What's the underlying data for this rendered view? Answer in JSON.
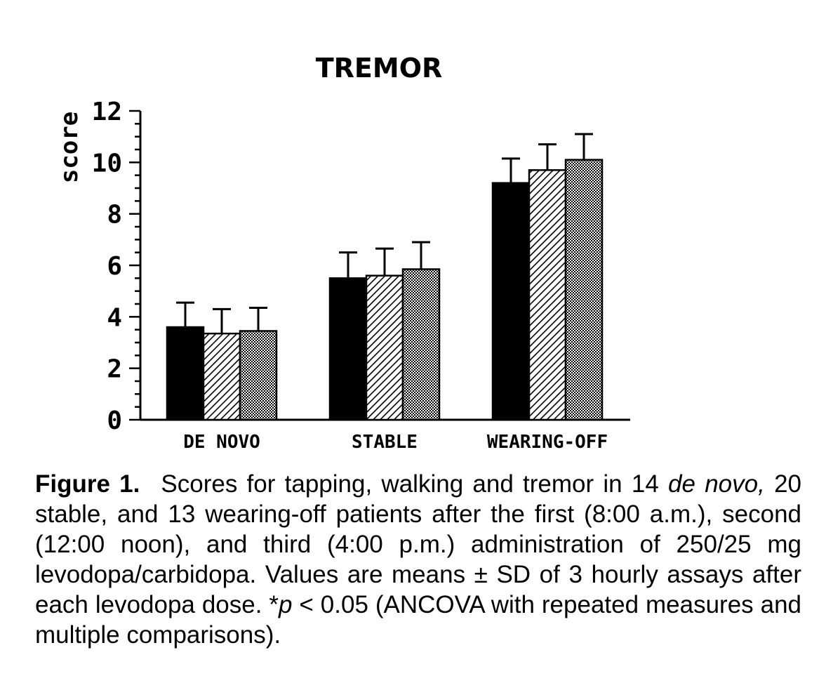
{
  "chart_data": {
    "type": "bar",
    "title": "TREMOR",
    "ylabel": "score",
    "xlabel": "",
    "ylim": [
      0,
      12
    ],
    "yticks": [
      "0",
      "2",
      "4",
      "6",
      "8",
      "10",
      "12"
    ],
    "categories": [
      "DE NOVO",
      "STABLE",
      "WEARING-OFF"
    ],
    "series": [
      {
        "fill": "solid",
        "color": "#000000",
        "values": [
          3.6,
          5.5,
          9.2
        ],
        "errors": [
          0.95,
          1.0,
          0.95
        ]
      },
      {
        "fill": "hatched",
        "color": "#000000",
        "values": [
          3.35,
          5.6,
          9.7
        ],
        "errors": [
          0.95,
          1.05,
          1.0
        ]
      },
      {
        "fill": "stippled",
        "color": "#000000",
        "values": [
          3.45,
          5.85,
          10.1
        ],
        "errors": [
          0.9,
          1.05,
          1.0
        ]
      }
    ],
    "grid": false,
    "legend": "none"
  },
  "caption": {
    "figure_label": "Figure 1.",
    "text_before_italic": "Scores for tapping, walking and tremor in 14 ",
    "italic_term": "de novo,",
    "text_after_italic": " 20 stable, and 13 wearing-off patients after the first (8:00 a.m.), second (12:00 noon), and third (4:00 p.m.) administration of 250/25 mg levodopa/carbidopa. Values are means ± SD of 3 hourly assays after each levodopa dose. *",
    "p_symbol": "p",
    "text_end": " < 0.05 (ANCOVA with repeated measures and multiple comparisons)."
  }
}
